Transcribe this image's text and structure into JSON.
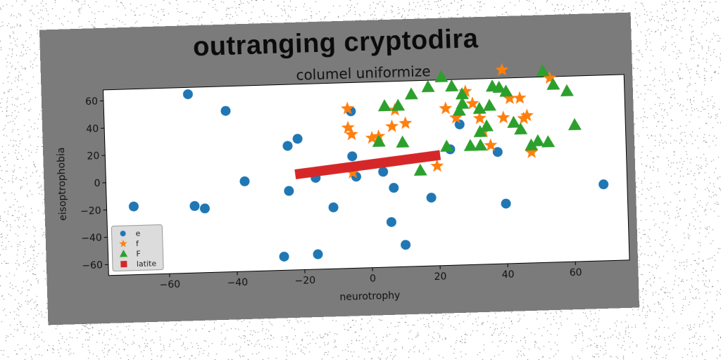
{
  "chart_data": {
    "type": "scatter",
    "suptitle": "outranging cryptodira",
    "title": "columel uniformize",
    "xlabel": "neurotrophy",
    "ylabel": "eisoptrophobia",
    "xlim": [
      -78,
      76
    ],
    "ylim": [
      -68,
      68
    ],
    "xticks": [
      -60,
      -40,
      -20,
      0,
      20,
      40,
      60
    ],
    "yticks": [
      -60,
      -40,
      -20,
      0,
      20,
      40,
      60
    ],
    "grid": false,
    "legend_position": "lower-left",
    "series": [
      {
        "name": "e",
        "marker": "circle",
        "color": "#1f77b4",
        "points": [
          [
            -53,
            63
          ],
          [
            -42,
            50
          ],
          [
            -70,
            -18
          ],
          [
            -52,
            -19
          ],
          [
            -49,
            -21
          ],
          [
            -37,
            -2
          ],
          [
            -24,
            23
          ],
          [
            -21,
            28
          ],
          [
            -24,
            -10
          ],
          [
            -26,
            -58
          ],
          [
            -16,
            -57
          ],
          [
            -16,
            -1
          ],
          [
            -11,
            -23
          ],
          [
            -5,
            14
          ],
          [
            -5,
            47
          ],
          [
            -4,
            -1
          ],
          [
            4,
            2
          ],
          [
            6,
            -35
          ],
          [
            7,
            -10
          ],
          [
            10,
            -52
          ],
          [
            18,
            -18
          ],
          [
            24,
            17
          ],
          [
            27,
            35
          ],
          [
            38,
            14
          ],
          [
            40,
            -24
          ],
          [
            69,
            -12
          ]
        ]
      },
      {
        "name": "f",
        "marker": "star",
        "color": "#ff7f0e",
        "points": [
          [
            -6,
            49
          ],
          [
            -6,
            35
          ],
          [
            -5,
            30
          ],
          [
            -5,
            2
          ],
          [
            1,
            27
          ],
          [
            3,
            28
          ],
          [
            7,
            35
          ],
          [
            8,
            47
          ],
          [
            11,
            37
          ],
          [
            20,
            5
          ],
          [
            23,
            47
          ],
          [
            26,
            40
          ],
          [
            29,
            59
          ],
          [
            31,
            50
          ],
          [
            33,
            39
          ],
          [
            34,
            29
          ],
          [
            36,
            19
          ],
          [
            40,
            74
          ],
          [
            40,
            39
          ],
          [
            42,
            53
          ],
          [
            45,
            53
          ],
          [
            46,
            38
          ],
          [
            47,
            40
          ],
          [
            48,
            13
          ],
          [
            54,
            67
          ]
        ]
      },
      {
        "name": "F",
        "marker": "triangle",
        "color": "#2ca02c",
        "points": [
          [
            3,
            24
          ],
          [
            5,
            50
          ],
          [
            9,
            50
          ],
          [
            10,
            23
          ],
          [
            13,
            58
          ],
          [
            15,
            2
          ],
          [
            18,
            63
          ],
          [
            22,
            70
          ],
          [
            23,
            19
          ],
          [
            25,
            63
          ],
          [
            27,
            45
          ],
          [
            28,
            57
          ],
          [
            28,
            50
          ],
          [
            30,
            19
          ],
          [
            33,
            46
          ],
          [
            33,
            29
          ],
          [
            33,
            19
          ],
          [
            35,
            33
          ],
          [
            36,
            48
          ],
          [
            37,
            62
          ],
          [
            39,
            61
          ],
          [
            41,
            58
          ],
          [
            43,
            35
          ],
          [
            45,
            30
          ],
          [
            48,
            18
          ],
          [
            50,
            21
          ],
          [
            52,
            72
          ],
          [
            53,
            20
          ],
          [
            55,
            62
          ],
          [
            59,
            57
          ],
          [
            61,
            32
          ]
        ]
      },
      {
        "name": "latite",
        "marker": "square",
        "color": "#d62728",
        "type": "line",
        "points": [
          [
            -22,
            2
          ],
          [
            21,
            13
          ]
        ]
      }
    ]
  }
}
